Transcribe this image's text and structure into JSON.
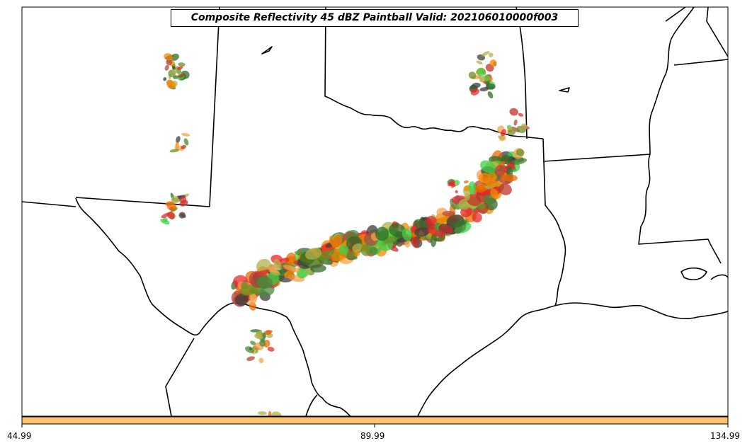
{
  "title": "Composite Reflectivity 45 dBZ Paintball Valid: 202106010000f003",
  "colorbar": {
    "color": "#ffc46b",
    "ticks": [
      "44.99",
      "89.99",
      "134.99"
    ]
  },
  "member_colors": [
    "#e8282a",
    "#f08a00",
    "#f5a34a",
    "#b5463e",
    "#6b8f25",
    "#4b8a3b",
    "#3cd147",
    "#b3b14a",
    "#3d3d3d",
    "#2f6d2a",
    "#c1312a",
    "#e86c00"
  ]
}
